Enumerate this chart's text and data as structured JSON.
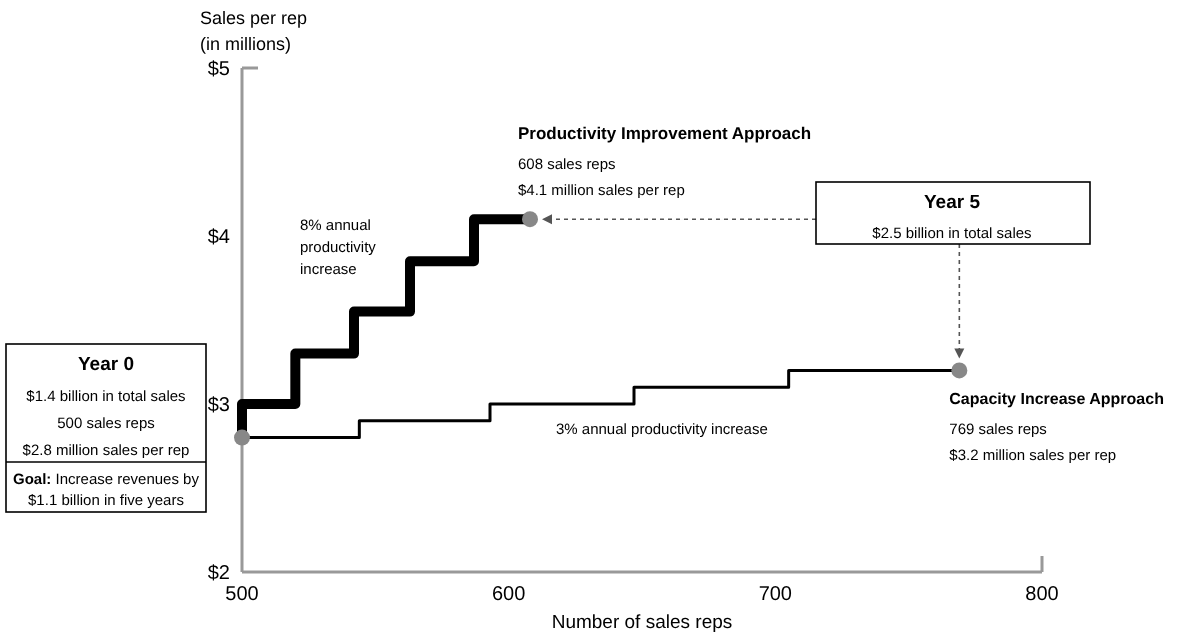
{
  "chart_data": {
    "type": "step",
    "xlabel": "Number of sales reps",
    "ylabel": "Sales per rep\n(in millions)",
    "xlim": [
      500,
      800
    ],
    "xticks": [
      500,
      600,
      700,
      800
    ],
    "ylim": [
      2,
      5
    ],
    "yticks": [
      {
        "value": 2,
        "label": "$2"
      },
      {
        "value": 3,
        "label": "$3"
      },
      {
        "value": 4,
        "label": "$4"
      },
      {
        "value": 5,
        "label": "$5"
      }
    ],
    "grid": false,
    "series": [
      {
        "color": "#000000",
        "x": [
          500,
          500,
          520,
          542,
          563,
          587,
          608
        ],
        "values": [
          2.8,
          3.0,
          3.3,
          3.55,
          3.85,
          4.1,
          4.1
        ]
      },
      {
        "color": "#000000",
        "x": [
          500,
          544,
          593,
          647,
          705,
          769
        ],
        "values": [
          2.8,
          2.9,
          3.0,
          3.1,
          3.2,
          3.2
        ]
      },
      {
        "type": "scatter",
        "color": "#888888",
        "x": [
          500,
          608,
          769
        ],
        "values": [
          2.8,
          4.1,
          3.2
        ]
      }
    ],
    "annotations": [
      {
        "text": "Productivity Improvement Approach\n608 sales reps\n$4.1 million sales per rep",
        "x": 608,
        "y": 4.1
      },
      {
        "text": "Capacity Increase Approach\n769 sales reps\n$3.2 million sales per rep",
        "x": 769,
        "y": 3.2
      },
      "8% annual\nproductivity\nincrease",
      "3% annual productivity increase",
      "Year 5\n$2.5 billion in total sales",
      "Year 0\n$1.4 billion in total sales\n500 sales reps\n$2.8 million sales per rep",
      "Goal: Increase revenues by\n$1.1 billion in five years"
    ]
  }
}
